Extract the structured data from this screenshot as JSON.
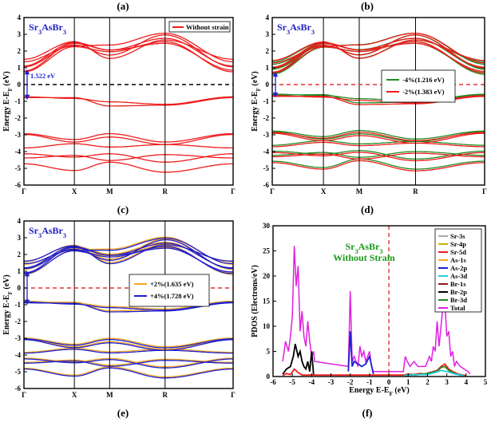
{
  "figure": {
    "labels": {
      "a": "(a)",
      "b": "(b)",
      "c": "(c)",
      "d": "(d)",
      "e": "(e)",
      "f": "(f)"
    }
  },
  "colors": {
    "red": "#ee1c1c",
    "green": "#228b22",
    "orange": "#f5a623",
    "blue": "#1e1ed2",
    "black": "#000000",
    "material": "#2020c0",
    "annotation_green": "#1a9a1a"
  },
  "chart_data": [
    {
      "id": "a",
      "type": "line",
      "material": {
        "base": "Sr",
        "s1": "3",
        "mid": "AsBr",
        "s2": "3"
      },
      "ylabel": "Energy E-E_F (eV)",
      "ylim": [
        -6,
        4
      ],
      "yticks": [
        "4",
        "3",
        "2",
        "1",
        "0",
        "-1",
        "-2",
        "-3",
        "-4",
        "-5",
        "-6"
      ],
      "kpoints": [
        "Γ",
        "X",
        "M",
        "R",
        "Γ"
      ],
      "kpos": [
        0,
        1,
        1.7,
        2.8,
        4.15
      ],
      "bandgap_label": "1.522 eV",
      "legend": [
        {
          "label": "Without strain",
          "color": "#ee1c1c"
        }
      ],
      "series": [
        {
          "name": "Without strain",
          "color": "#ee1c1c",
          "gap": 1.522,
          "shift": 0
        }
      ]
    },
    {
      "id": "b",
      "type": "line",
      "material": {
        "base": "Sr",
        "s1": "3",
        "mid": "AsBr",
        "s2": "3"
      },
      "ylabel": "Energy E-E_F (eV)",
      "ylim": [
        -6,
        4
      ],
      "yticks": [
        "4",
        "3",
        "2",
        "1",
        "0",
        "-1",
        "-2",
        "-3",
        "-4",
        "-5",
        "-6"
      ],
      "kpoints": [
        "Γ",
        "X",
        "M",
        "R",
        "Γ"
      ],
      "kpos": [
        0,
        1,
        1.7,
        2.8,
        4.15
      ],
      "legend": [
        {
          "label": "-4%(1.216 eV)",
          "color": "#228b22"
        },
        {
          "label": "-2%(1.383 eV)",
          "color": "#ee1c1c"
        }
      ],
      "series": [
        {
          "name": "-4%",
          "color": "#228b22",
          "gap": 1.216,
          "shift": 0.18
        },
        {
          "name": "-2%",
          "color": "#ee1c1c",
          "gap": 1.383,
          "shift": 0.08
        }
      ]
    },
    {
      "id": "c",
      "type": "line",
      "material": {
        "base": "Sr",
        "s1": "3",
        "mid": "AsBr",
        "s2": "3"
      },
      "ylabel": "Energy E-E_F (eV)",
      "ylim": [
        -6,
        4
      ],
      "yticks": [
        "4",
        "3",
        "2",
        "1",
        "0",
        "-1",
        "-2",
        "-3",
        "-4",
        "-5",
        "-6"
      ],
      "kpoints": [
        "Γ",
        "X",
        "M",
        "R",
        "Γ"
      ],
      "kpos": [
        0,
        1,
        1.7,
        2.8,
        4.15
      ],
      "legend": [
        {
          "label": "+2%(1.635 eV)",
          "color": "#f5a623"
        },
        {
          "label": "+4%(1.728 eV)",
          "color": "#1e1ed2"
        }
      ],
      "series": [
        {
          "name": "+2%",
          "color": "#f5a623",
          "gap": 1.635,
          "shift": -0.1
        },
        {
          "name": "+4%",
          "color": "#1e1ed2",
          "gap": 1.728,
          "shift": -0.22
        }
      ]
    },
    {
      "id": "d",
      "type": "line",
      "title": "Sr3AsBr3 Without Strain",
      "material": {
        "base": "Sr",
        "s1": "3",
        "mid": "AsBr",
        "s2": "3"
      },
      "subtitle": "Without Strain",
      "xlabel": "Energy E-E_F (eV)",
      "ylabel": "PDOS (Electrons/eV)",
      "xlim": [
        -6,
        5
      ],
      "ylim": [
        0,
        30
      ],
      "xticks": [
        "-6",
        "-5",
        "-4",
        "-3",
        "-2",
        "-1",
        "0",
        "1",
        "2",
        "3",
        "4",
        "5"
      ],
      "yticks": [
        "0",
        "5",
        "10",
        "15",
        "20",
        "25",
        "30"
      ],
      "legend": [
        {
          "label": "Sr-3s",
          "color": "#aaaaaa"
        },
        {
          "label": "Sr-4p",
          "color": "#c8b400"
        },
        {
          "label": "Sr-5d",
          "color": "#ee1c1c"
        },
        {
          "label": "As-1s",
          "color": "#f5a623"
        },
        {
          "label": "As-2p",
          "color": "#1e1ed2"
        },
        {
          "label": "As-3d",
          "color": "#20d0e0"
        },
        {
          "label": "Br-1s",
          "color": "#8b1a1a"
        },
        {
          "label": "Br-2p",
          "color": "#000000"
        },
        {
          "label": "Br-3d",
          "color": "#228b22"
        },
        {
          "label": "Total",
          "color": "#e020e0"
        }
      ],
      "series": [
        {
          "name": "Total",
          "color": "#e020e0",
          "x": [
            -5.5,
            -5.35,
            -5.2,
            -5.1,
            -5.0,
            -4.9,
            -4.8,
            -4.7,
            -4.6,
            -4.5,
            -4.4,
            -4.3,
            -4.2,
            -4.1,
            -4.0,
            -3.9,
            -3.85,
            -2.1,
            -2.0,
            -1.9,
            -1.8,
            -1.7,
            -1.6,
            -1.5,
            -1.4,
            -1.3,
            -1.2,
            -1.1,
            -1.0,
            -0.9,
            -0.8,
            0.75,
            0.85,
            0.95,
            1.1,
            1.3,
            1.5,
            1.7,
            1.9,
            2.0,
            2.1,
            2.2,
            2.3,
            2.4,
            2.5,
            2.6,
            2.7,
            2.8,
            2.9,
            3.0,
            3.1,
            3.2,
            3.3,
            3.4,
            3.5,
            3.7,
            3.9,
            4.1,
            4.2
          ],
          "y": [
            3,
            7,
            5,
            8,
            12,
            26,
            18,
            22,
            9,
            13,
            8,
            6,
            11,
            7,
            4,
            5,
            3,
            2,
            17,
            3,
            4,
            3,
            2,
            6,
            4,
            5,
            3,
            4,
            5,
            2,
            1,
            1,
            4,
            3,
            2,
            3,
            2,
            2,
            2,
            3,
            4,
            3,
            6,
            5,
            11,
            6,
            10,
            14,
            15,
            8,
            9,
            4,
            5,
            2,
            3,
            2,
            1.5,
            1,
            0.5
          ]
        },
        {
          "name": "Br-2p",
          "color": "#000000",
          "x": [
            -5.5,
            -5.3,
            -5.1,
            -4.95,
            -4.85,
            -4.7,
            -4.6,
            -4.5,
            -4.4,
            -4.3,
            -4.2,
            -4.1,
            -4.0,
            -3.9
          ],
          "y": [
            0.5,
            1.5,
            2,
            4,
            6.5,
            4,
            5,
            3,
            2,
            1.5,
            3,
            1,
            5,
            0.3
          ]
        },
        {
          "name": "As-2p",
          "color": "#1e1ed2",
          "x": [
            -2.1,
            -2.0,
            -1.9,
            -1.8,
            -1.6,
            -1.4,
            -1.2,
            -1.0,
            -0.8
          ],
          "y": [
            1,
            9,
            2,
            3,
            2.5,
            2,
            2.5,
            4,
            0.5
          ]
        },
        {
          "name": "Sr-5d",
          "color": "#ee1c1c",
          "x": [
            -5.5,
            -5.3,
            -5.1,
            -4.9,
            -4.7,
            -4.5,
            0.8,
            1.0,
            1.3,
            1.6,
            1.9,
            2.1,
            2.3,
            2.5,
            2.7,
            2.9,
            3.1,
            3.3,
            3.6,
            4.0
          ],
          "y": [
            0.2,
            0.6,
            0.4,
            1.5,
            0.8,
            0.3,
            0.3,
            0.5,
            0.4,
            0.6,
            0.5,
            0.8,
            1,
            1.2,
            2,
            2.5,
            1.5,
            1,
            0.5,
            0.2
          ]
        },
        {
          "name": "Br-3d",
          "color": "#228b22",
          "x": [
            0.8,
            1.1,
            1.4,
            1.7,
            2.0,
            2.3,
            2.5,
            2.7,
            2.9,
            3.1,
            3.4,
            3.8
          ],
          "y": [
            0.2,
            0.4,
            0.3,
            0.5,
            0.6,
            0.9,
            1,
            1.8,
            2,
            1.2,
            0.6,
            0.2
          ]
        },
        {
          "name": "As-3d",
          "color": "#20d0e0",
          "x": [
            0.8,
            1.2,
            1.6,
            2.0,
            2.4,
            2.7,
            3.0,
            3.4,
            3.9
          ],
          "y": [
            0.2,
            0.3,
            0.4,
            0.4,
            0.8,
            1.2,
            1,
            0.5,
            0.2
          ]
        }
      ]
    }
  ]
}
